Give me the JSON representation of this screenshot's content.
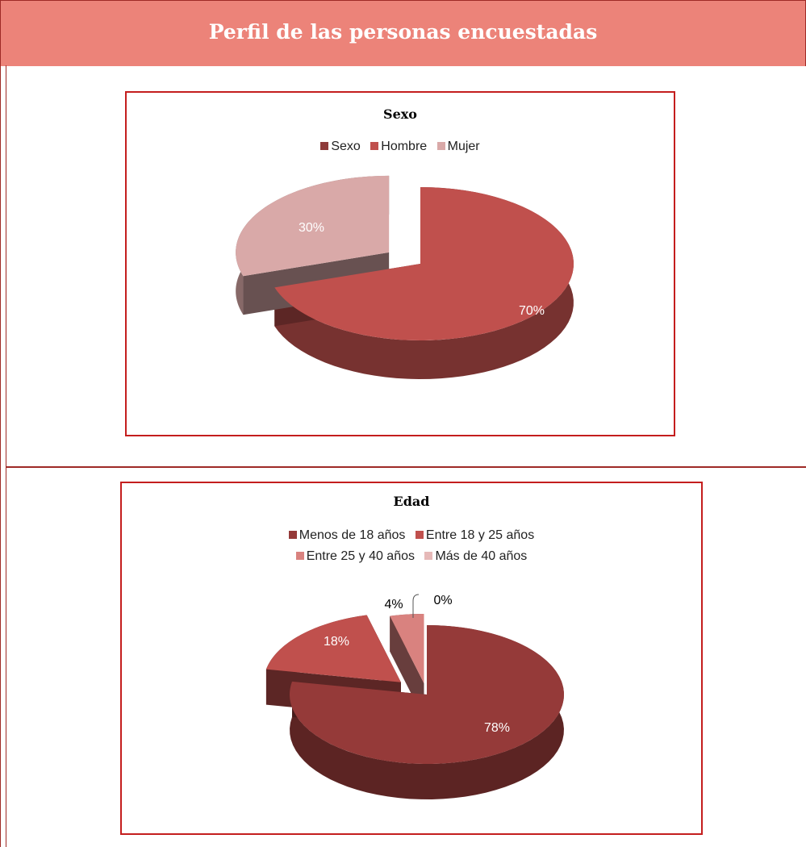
{
  "header": {
    "title": "Perfil de las personas encuestadas"
  },
  "colors": {
    "header_bg": "#EC8379",
    "rule": "#9E2A26",
    "chart_border": "#C41E1E"
  },
  "chart_data": [
    {
      "type": "pie",
      "title": "Sexo",
      "legend": [
        {
          "label": "Sexo",
          "color": "#8E3B3A"
        },
        {
          "label": "Hombre",
          "color": "#C0504D"
        },
        {
          "label": "Mujer",
          "color": "#D9A9A8"
        }
      ],
      "slices": [
        {
          "label": "Hombre",
          "value": 70,
          "text": "70%",
          "color": "#C0504D"
        },
        {
          "label": "Mujer",
          "value": 30,
          "text": "30%",
          "color": "#D9A9A8"
        }
      ]
    },
    {
      "type": "pie",
      "title": "Edad",
      "legend": [
        {
          "label": "Menos de 18 años",
          "color": "#953A39"
        },
        {
          "label": "Entre 18 y 25 años",
          "color": "#C0504D"
        },
        {
          "label": "Entre 25 y 40 años",
          "color": "#D9827F"
        },
        {
          "label": "Más de 40 años",
          "color": "#E6B9B8"
        }
      ],
      "slices": [
        {
          "label": "Menos de 18 años",
          "value": 78,
          "text": "78%",
          "color": "#953A39"
        },
        {
          "label": "Entre 18 y 25 años",
          "value": 18,
          "text": "18%",
          "color": "#C0504D"
        },
        {
          "label": "Entre 25 y 40 años",
          "value": 4,
          "text": "4%",
          "color": "#D9827F"
        },
        {
          "label": "Más de 40 años",
          "value": 0,
          "text": "0%",
          "color": "#E6B9B8"
        }
      ]
    }
  ]
}
